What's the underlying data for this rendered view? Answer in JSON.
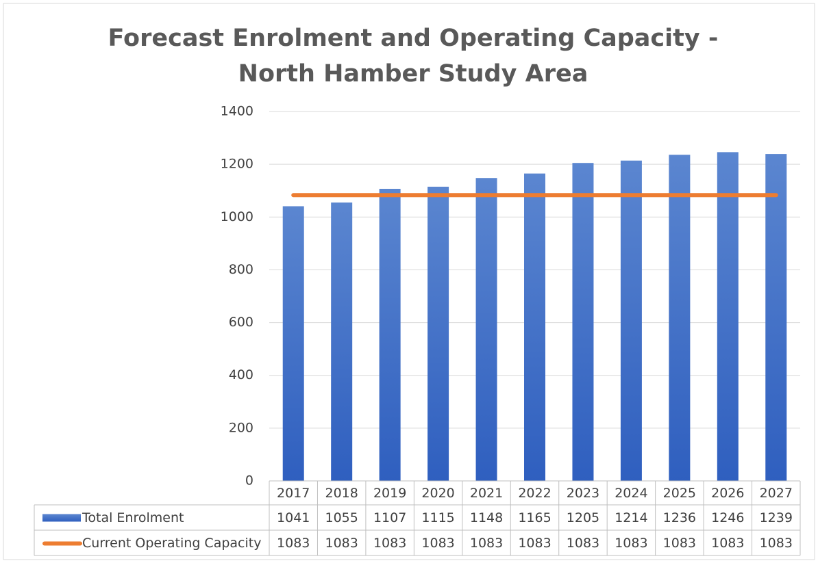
{
  "chart_data": {
    "type": "bar",
    "title": "Forecast Enrolment and Operating Capacity - North Hamber Study Area",
    "categories": [
      "2017",
      "2018",
      "2019",
      "2020",
      "2021",
      "2022",
      "2023",
      "2024",
      "2025",
      "2026",
      "2027"
    ],
    "series": [
      {
        "name": "Total Enrolment",
        "type": "bar",
        "color": "#4472c4",
        "values": [
          1041,
          1055,
          1107,
          1115,
          1148,
          1165,
          1205,
          1214,
          1236,
          1246,
          1239
        ]
      },
      {
        "name": "Current Operating Capacity",
        "type": "line",
        "color": "#ed7d31",
        "values": [
          1083,
          1083,
          1083,
          1083,
          1083,
          1083,
          1083,
          1083,
          1083,
          1083,
          1083
        ]
      }
    ],
    "ylim": [
      0,
      1400
    ],
    "yticks": [
      0,
      200,
      400,
      600,
      800,
      1000,
      1200,
      1400
    ],
    "grid": true,
    "data_table": true
  }
}
